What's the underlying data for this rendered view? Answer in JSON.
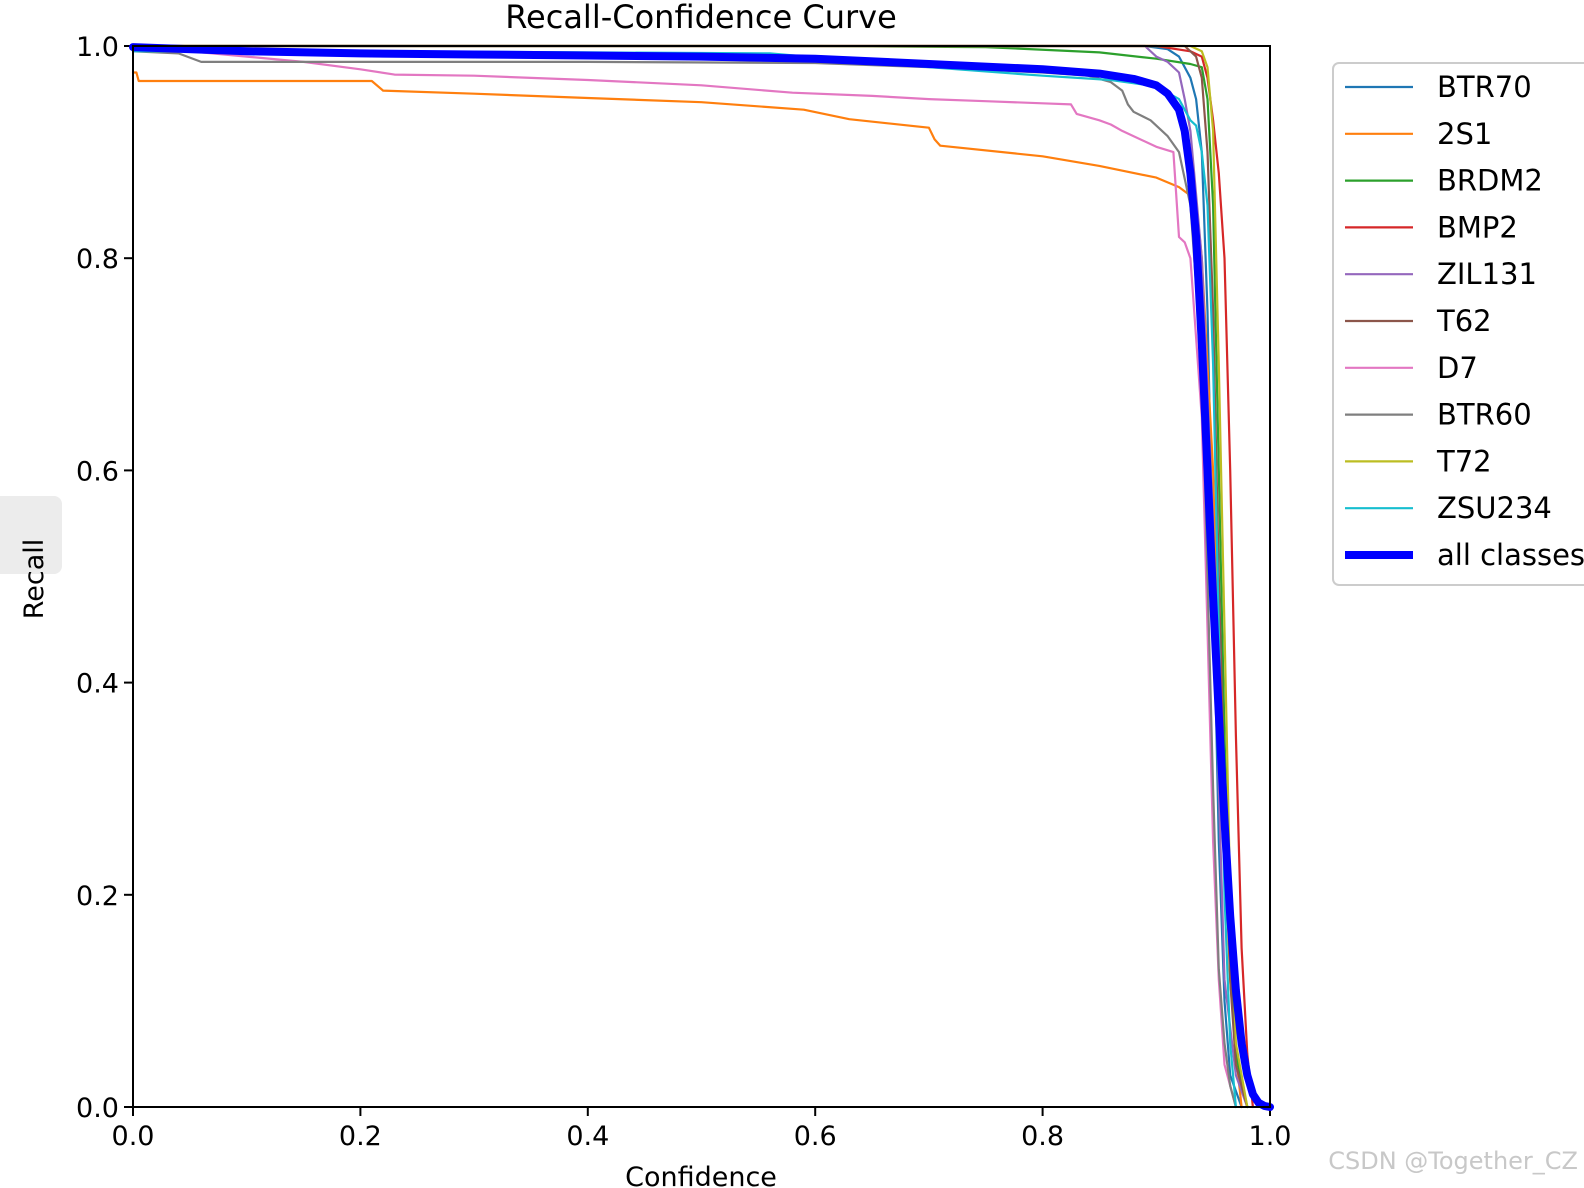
{
  "chart_data": {
    "type": "line",
    "title": "Recall-Confidence Curve",
    "xlabel": "Confidence",
    "ylabel": "Recall",
    "xlim": [
      0,
      1
    ],
    "ylim": [
      0,
      1
    ],
    "xticks": [
      "0.0",
      "0.2",
      "0.4",
      "0.6",
      "0.8",
      "1.0"
    ],
    "yticks": [
      "0.0",
      "0.2",
      "0.4",
      "0.6",
      "0.8",
      "1.0"
    ],
    "grid": false,
    "legend_position": "outside-right",
    "series": [
      {
        "name": "BTR70",
        "color": "#1f77b4",
        "x": [
          0,
          0.2,
          0.5,
          0.8,
          0.89,
          0.91,
          0.92,
          0.93,
          0.935,
          0.94,
          0.945,
          0.95,
          0.955,
          0.96,
          0.965,
          0.975
        ],
        "values": [
          1.0,
          1.0,
          1.0,
          1.0,
          1.0,
          0.997,
          0.99,
          0.97,
          0.95,
          0.9,
          0.75,
          0.5,
          0.25,
          0.1,
          0.03,
          0.0
        ]
      },
      {
        "name": "2S1",
        "color": "#ff7f0e",
        "x": [
          0,
          0.003,
          0.005,
          0.1,
          0.21,
          0.22,
          0.3,
          0.4,
          0.5,
          0.59,
          0.63,
          0.7,
          0.705,
          0.71,
          0.8,
          0.85,
          0.9,
          0.92,
          0.935,
          0.94,
          0.95,
          0.955,
          0.96,
          0.965,
          0.97,
          0.975
        ],
        "values": [
          0.975,
          0.975,
          0.967,
          0.967,
          0.967,
          0.958,
          0.955,
          0.951,
          0.947,
          0.94,
          0.931,
          0.923,
          0.912,
          0.906,
          0.896,
          0.887,
          0.876,
          0.867,
          0.855,
          0.8,
          0.6,
          0.4,
          0.25,
          0.12,
          0.05,
          0.0
        ]
      },
      {
        "name": "BRDM2",
        "color": "#2ca02c",
        "x": [
          0,
          0.3,
          0.6,
          0.75,
          0.85,
          0.9,
          0.93,
          0.94,
          0.945,
          0.95,
          0.955,
          0.96,
          0.965,
          0.97,
          0.98
        ],
        "values": [
          1.0,
          1.0,
          1.0,
          0.999,
          0.994,
          0.988,
          0.983,
          0.98,
          0.95,
          0.85,
          0.6,
          0.35,
          0.15,
          0.05,
          0.0
        ]
      },
      {
        "name": "BMP2",
        "color": "#d62728",
        "x": [
          0,
          0.3,
          0.6,
          0.8,
          0.9,
          0.93,
          0.94,
          0.945,
          0.95,
          0.955,
          0.96,
          0.965,
          0.97,
          0.975,
          0.98,
          0.985
        ],
        "values": [
          1.0,
          1.0,
          1.0,
          1.0,
          1.0,
          0.995,
          0.99,
          0.97,
          0.93,
          0.88,
          0.8,
          0.6,
          0.35,
          0.15,
          0.05,
          0.0
        ]
      },
      {
        "name": "ZIL131",
        "color": "#9467bd",
        "x": [
          0,
          0.3,
          0.6,
          0.8,
          0.89,
          0.9,
          0.91,
          0.92,
          0.925,
          0.93,
          0.94,
          0.95,
          0.955,
          0.96,
          0.97,
          0.98
        ],
        "values": [
          1.0,
          1.0,
          1.0,
          1.0,
          1.0,
          0.99,
          0.985,
          0.975,
          0.95,
          0.92,
          0.8,
          0.55,
          0.3,
          0.12,
          0.03,
          0.0
        ]
      },
      {
        "name": "T62",
        "color": "#8c564b",
        "x": [
          0,
          0.3,
          0.6,
          0.8,
          0.9,
          0.925,
          0.935,
          0.94,
          0.945,
          0.95,
          0.955,
          0.96,
          0.965,
          0.97,
          0.98
        ],
        "values": [
          1.0,
          1.0,
          1.0,
          1.0,
          1.0,
          1.0,
          0.99,
          0.97,
          0.9,
          0.75,
          0.5,
          0.3,
          0.12,
          0.04,
          0.0
        ]
      },
      {
        "name": "D7",
        "color": "#e377c2",
        "x": [
          0,
          0.05,
          0.1,
          0.15,
          0.2,
          0.23,
          0.3,
          0.4,
          0.5,
          0.58,
          0.65,
          0.7,
          0.75,
          0.8,
          0.825,
          0.83,
          0.85,
          0.86,
          0.87,
          0.9,
          0.915,
          0.92,
          0.925,
          0.93,
          0.94,
          0.945,
          0.95,
          0.955,
          0.96,
          0.97
        ],
        "values": [
          1.0,
          0.995,
          0.99,
          0.985,
          0.978,
          0.973,
          0.972,
          0.968,
          0.963,
          0.956,
          0.953,
          0.95,
          0.948,
          0.946,
          0.945,
          0.936,
          0.93,
          0.926,
          0.92,
          0.905,
          0.9,
          0.82,
          0.815,
          0.8,
          0.65,
          0.45,
          0.25,
          0.12,
          0.04,
          0.0
        ]
      },
      {
        "name": "BTR60",
        "color": "#7f7f7f",
        "x": [
          0,
          0.04,
          0.06,
          0.1,
          0.2,
          0.4,
          0.6,
          0.7,
          0.8,
          0.84,
          0.86,
          0.87,
          0.875,
          0.88,
          0.895,
          0.91,
          0.92,
          0.93,
          0.94,
          0.945,
          0.95,
          0.955,
          0.96,
          0.965,
          0.97
        ],
        "values": [
          0.995,
          0.993,
          0.985,
          0.985,
          0.985,
          0.985,
          0.984,
          0.98,
          0.975,
          0.972,
          0.966,
          0.958,
          0.945,
          0.938,
          0.93,
          0.915,
          0.9,
          0.85,
          0.7,
          0.5,
          0.3,
          0.13,
          0.06,
          0.02,
          0.0
        ]
      },
      {
        "name": "T72",
        "color": "#bcbd22",
        "x": [
          0,
          0.3,
          0.6,
          0.8,
          0.9,
          0.93,
          0.94,
          0.945,
          0.95,
          0.955,
          0.96,
          0.965,
          0.97,
          0.98
        ],
        "values": [
          1.0,
          1.0,
          1.0,
          1.0,
          1.0,
          1.0,
          0.995,
          0.98,
          0.92,
          0.7,
          0.45,
          0.2,
          0.06,
          0.0
        ]
      },
      {
        "name": "ZSU234",
        "color": "#17becf",
        "x": [
          0,
          0.2,
          0.4,
          0.56,
          0.7,
          0.8,
          0.86,
          0.9,
          0.92,
          0.93,
          0.935,
          0.94,
          0.945,
          0.95,
          0.955,
          0.96,
          0.965,
          0.97
        ],
        "values": [
          0.995,
          0.995,
          0.994,
          0.993,
          0.98,
          0.972,
          0.968,
          0.962,
          0.95,
          0.93,
          0.925,
          0.9,
          0.85,
          0.7,
          0.45,
          0.2,
          0.06,
          0.0
        ]
      },
      {
        "name": "all classes",
        "color": "#0000ff",
        "bold": true,
        "x": [
          0,
          0.1,
          0.2,
          0.3,
          0.4,
          0.5,
          0.6,
          0.7,
          0.8,
          0.85,
          0.88,
          0.9,
          0.91,
          0.92,
          0.925,
          0.93,
          0.935,
          0.94,
          0.945,
          0.95,
          0.955,
          0.96,
          0.965,
          0.97,
          0.975,
          0.98,
          0.985,
          0.99,
          0.995,
          1.0
        ],
        "values": [
          0.999,
          0.995,
          0.993,
          0.992,
          0.991,
          0.99,
          0.988,
          0.983,
          0.978,
          0.974,
          0.969,
          0.963,
          0.955,
          0.94,
          0.92,
          0.88,
          0.82,
          0.72,
          0.6,
          0.48,
          0.37,
          0.27,
          0.18,
          0.11,
          0.06,
          0.03,
          0.012,
          0.004,
          0.001,
          0.0
        ]
      }
    ]
  },
  "watermark": "CSDN @Together_CZ"
}
